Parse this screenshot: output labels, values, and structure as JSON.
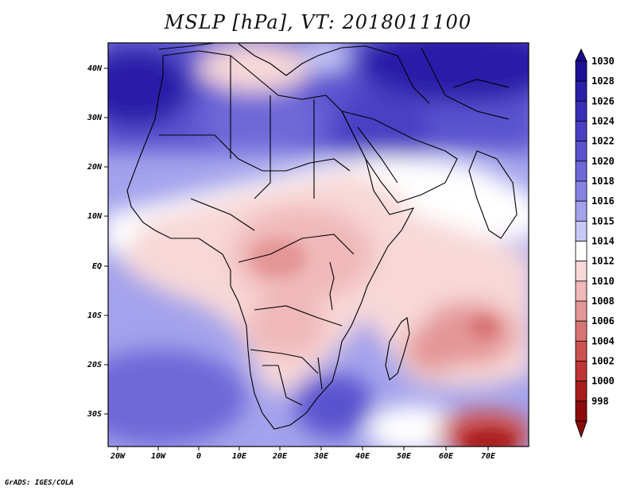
{
  "title": "MSLP [hPa], VT: 2018011100",
  "credit": "GrADS: IGES/COLA",
  "lon_ticks": [
    "20W",
    "10W",
    "0",
    "10E",
    "20E",
    "30E",
    "40E",
    "50E",
    "60E",
    "70E"
  ],
  "lat_ticks": [
    "40N",
    "30N",
    "20N",
    "10N",
    "EQ",
    "10S",
    "20S",
    "30S"
  ],
  "colorbar": {
    "levels": [
      "1030",
      "1028",
      "1026",
      "1024",
      "1022",
      "1020",
      "1018",
      "1016",
      "1015",
      "1014",
      "1012",
      "1010",
      "1008",
      "1006",
      "1004",
      "1002",
      "1000",
      "998"
    ],
    "colors": [
      "#1e0f96",
      "#2a1fa8",
      "#3a2eb8",
      "#4a3fc4",
      "#5a52cf",
      "#6e68d8",
      "#8682e2",
      "#a4a2ec",
      "#c8c8f6",
      "#ffffff",
      "#f8d8d8",
      "#f0b8b8",
      "#e49696",
      "#d87474",
      "#cc5252",
      "#bf3434",
      "#a81c1c",
      "#8c0c0c"
    ],
    "max_color": "#1a0a8c",
    "min_color": "#8c0c0c"
  }
}
